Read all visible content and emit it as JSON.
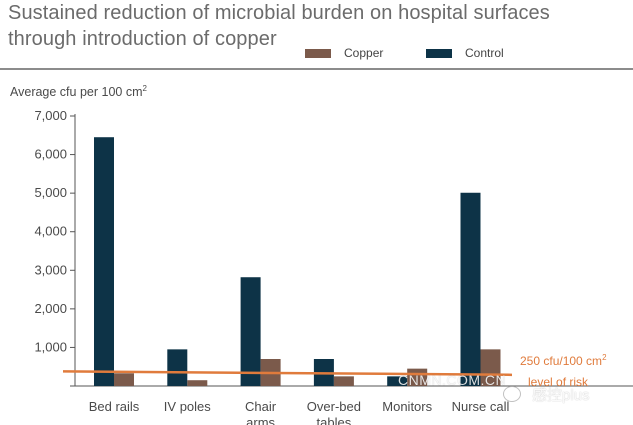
{
  "title_line1": "Sustained reduction of microbial burden on hospital surfaces",
  "title_line2": "through introduction of copper",
  "legend": {
    "copper": "Copper",
    "control": "Control"
  },
  "annotation": {
    "value_text": "250 cfu/100 cm",
    "superscript": "2",
    "second_line": "level of risk"
  },
  "watermark": {
    "site": "CNMN.COM.CN",
    "brand": "感控plus"
  },
  "colors": {
    "copper": "#7b5a4b",
    "control": "#0d3347",
    "risk_line": "#e07b3c",
    "axis": "#555555"
  },
  "chart_data": {
    "type": "bar",
    "title": "Sustained reduction of microbial burden on hospital surfaces through introduction of copper",
    "ylabel": "Average cfu per 100 cm",
    "ylabel_superscript": "2",
    "xlabel": "",
    "ylim": [
      0,
      7000
    ],
    "yticks": [
      0,
      1000,
      2000,
      3000,
      4000,
      5000,
      6000,
      7000
    ],
    "ytick_labels": [
      "",
      "1,000",
      "2,000",
      "3,000",
      "4,000",
      "5,000",
      "6,000",
      "7,000"
    ],
    "grid": false,
    "legend_position": "top-right",
    "categories": [
      [
        "Bed rails"
      ],
      [
        "IV poles"
      ],
      [
        "Chair",
        "arms"
      ],
      [
        "Over-bed",
        "tables"
      ],
      [
        "Monitors"
      ],
      [
        "Nurse call"
      ]
    ],
    "series": [
      {
        "name": "Control",
        "values": [
          6450,
          950,
          2820,
          700,
          250,
          5010
        ]
      },
      {
        "name": "Copper",
        "values": [
          330,
          150,
          700,
          250,
          450,
          950
        ]
      }
    ],
    "reference_line": {
      "label": "250 cfu/100 cm2 level of risk",
      "start_value": 380,
      "end_value": 290
    }
  }
}
